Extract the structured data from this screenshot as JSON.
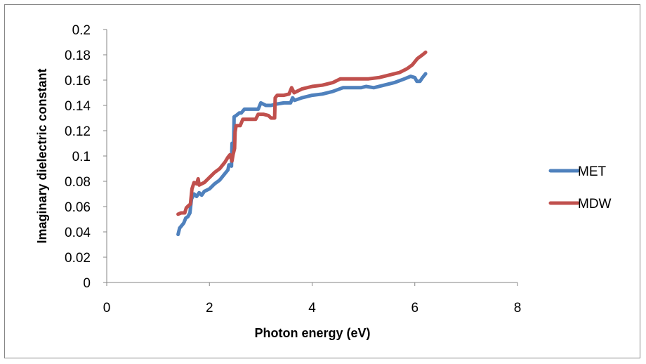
{
  "chart_data": {
    "type": "line",
    "title": "",
    "xlabel": "Photon energy (eV)",
    "ylabel": "Imaginary dielectric constant",
    "xlim": [
      0,
      8
    ],
    "ylim": [
      0,
      0.2
    ],
    "x_ticks": [
      "0",
      "2",
      "4",
      "6",
      "8"
    ],
    "y_ticks": [
      "0",
      "0.02",
      "0.04",
      "0.06",
      "0.08",
      "0.1",
      "0.12",
      "0.14",
      "0.16",
      "0.18",
      "0.2"
    ],
    "grid": false,
    "legend_position": "right",
    "series": [
      {
        "name": "MET",
        "color": "#4F81BD",
        "points": [
          [
            1.39,
            0.038
          ],
          [
            1.42,
            0.043
          ],
          [
            1.46,
            0.045
          ],
          [
            1.5,
            0.047
          ],
          [
            1.54,
            0.051
          ],
          [
            1.58,
            0.052
          ],
          [
            1.62,
            0.055
          ],
          [
            1.65,
            0.066
          ],
          [
            1.7,
            0.07
          ],
          [
            1.75,
            0.068
          ],
          [
            1.8,
            0.071
          ],
          [
            1.85,
            0.069
          ],
          [
            1.9,
            0.072
          ],
          [
            2.0,
            0.074
          ],
          [
            2.1,
            0.078
          ],
          [
            2.2,
            0.081
          ],
          [
            2.3,
            0.086
          ],
          [
            2.36,
            0.089
          ],
          [
            2.38,
            0.093
          ],
          [
            2.43,
            0.092
          ],
          [
            2.44,
            0.11
          ],
          [
            2.47,
            0.103
          ],
          [
            2.48,
            0.131
          ],
          [
            2.52,
            0.132
          ],
          [
            2.58,
            0.134
          ],
          [
            2.62,
            0.134
          ],
          [
            2.68,
            0.137
          ],
          [
            2.8,
            0.137
          ],
          [
            2.95,
            0.137
          ],
          [
            3.0,
            0.142
          ],
          [
            3.1,
            0.14
          ],
          [
            3.2,
            0.14
          ],
          [
            3.3,
            0.141
          ],
          [
            3.45,
            0.142
          ],
          [
            3.58,
            0.142
          ],
          [
            3.62,
            0.146
          ],
          [
            3.66,
            0.144
          ],
          [
            3.8,
            0.146
          ],
          [
            4.0,
            0.148
          ],
          [
            4.2,
            0.149
          ],
          [
            4.4,
            0.151
          ],
          [
            4.6,
            0.154
          ],
          [
            4.8,
            0.154
          ],
          [
            4.95,
            0.154
          ],
          [
            5.05,
            0.155
          ],
          [
            5.2,
            0.154
          ],
          [
            5.4,
            0.156
          ],
          [
            5.6,
            0.158
          ],
          [
            5.8,
            0.161
          ],
          [
            5.92,
            0.163
          ],
          [
            6.0,
            0.162
          ],
          [
            6.04,
            0.159
          ],
          [
            6.1,
            0.159
          ],
          [
            6.15,
            0.162
          ],
          [
            6.21,
            0.165
          ]
        ]
      },
      {
        "name": "MDW",
        "color": "#C0504D",
        "points": [
          [
            1.39,
            0.054
          ],
          [
            1.45,
            0.055
          ],
          [
            1.52,
            0.055
          ],
          [
            1.55,
            0.059
          ],
          [
            1.6,
            0.061
          ],
          [
            1.63,
            0.062
          ],
          [
            1.66,
            0.074
          ],
          [
            1.7,
            0.079
          ],
          [
            1.75,
            0.078
          ],
          [
            1.78,
            0.082
          ],
          [
            1.8,
            0.077
          ],
          [
            1.9,
            0.079
          ],
          [
            2.0,
            0.083
          ],
          [
            2.1,
            0.087
          ],
          [
            2.2,
            0.09
          ],
          [
            2.3,
            0.095
          ],
          [
            2.36,
            0.099
          ],
          [
            2.4,
            0.101
          ],
          [
            2.44,
            0.096
          ],
          [
            2.46,
            0.101
          ],
          [
            2.49,
            0.106
          ],
          [
            2.5,
            0.119
          ],
          [
            2.52,
            0.124
          ],
          [
            2.6,
            0.124
          ],
          [
            2.65,
            0.129
          ],
          [
            2.8,
            0.129
          ],
          [
            2.9,
            0.129
          ],
          [
            2.95,
            0.133
          ],
          [
            3.05,
            0.133
          ],
          [
            3.15,
            0.132
          ],
          [
            3.2,
            0.13
          ],
          [
            3.27,
            0.13
          ],
          [
            3.28,
            0.146
          ],
          [
            3.32,
            0.148
          ],
          [
            3.45,
            0.148
          ],
          [
            3.55,
            0.149
          ],
          [
            3.6,
            0.154
          ],
          [
            3.65,
            0.15
          ],
          [
            3.8,
            0.153
          ],
          [
            4.0,
            0.155
          ],
          [
            4.2,
            0.156
          ],
          [
            4.4,
            0.158
          ],
          [
            4.55,
            0.161
          ],
          [
            4.8,
            0.161
          ],
          [
            4.95,
            0.161
          ],
          [
            5.1,
            0.161
          ],
          [
            5.3,
            0.162
          ],
          [
            5.5,
            0.164
          ],
          [
            5.7,
            0.166
          ],
          [
            5.85,
            0.169
          ],
          [
            5.95,
            0.172
          ],
          [
            6.05,
            0.177
          ],
          [
            6.15,
            0.18
          ],
          [
            6.21,
            0.182
          ]
        ]
      }
    ]
  }
}
